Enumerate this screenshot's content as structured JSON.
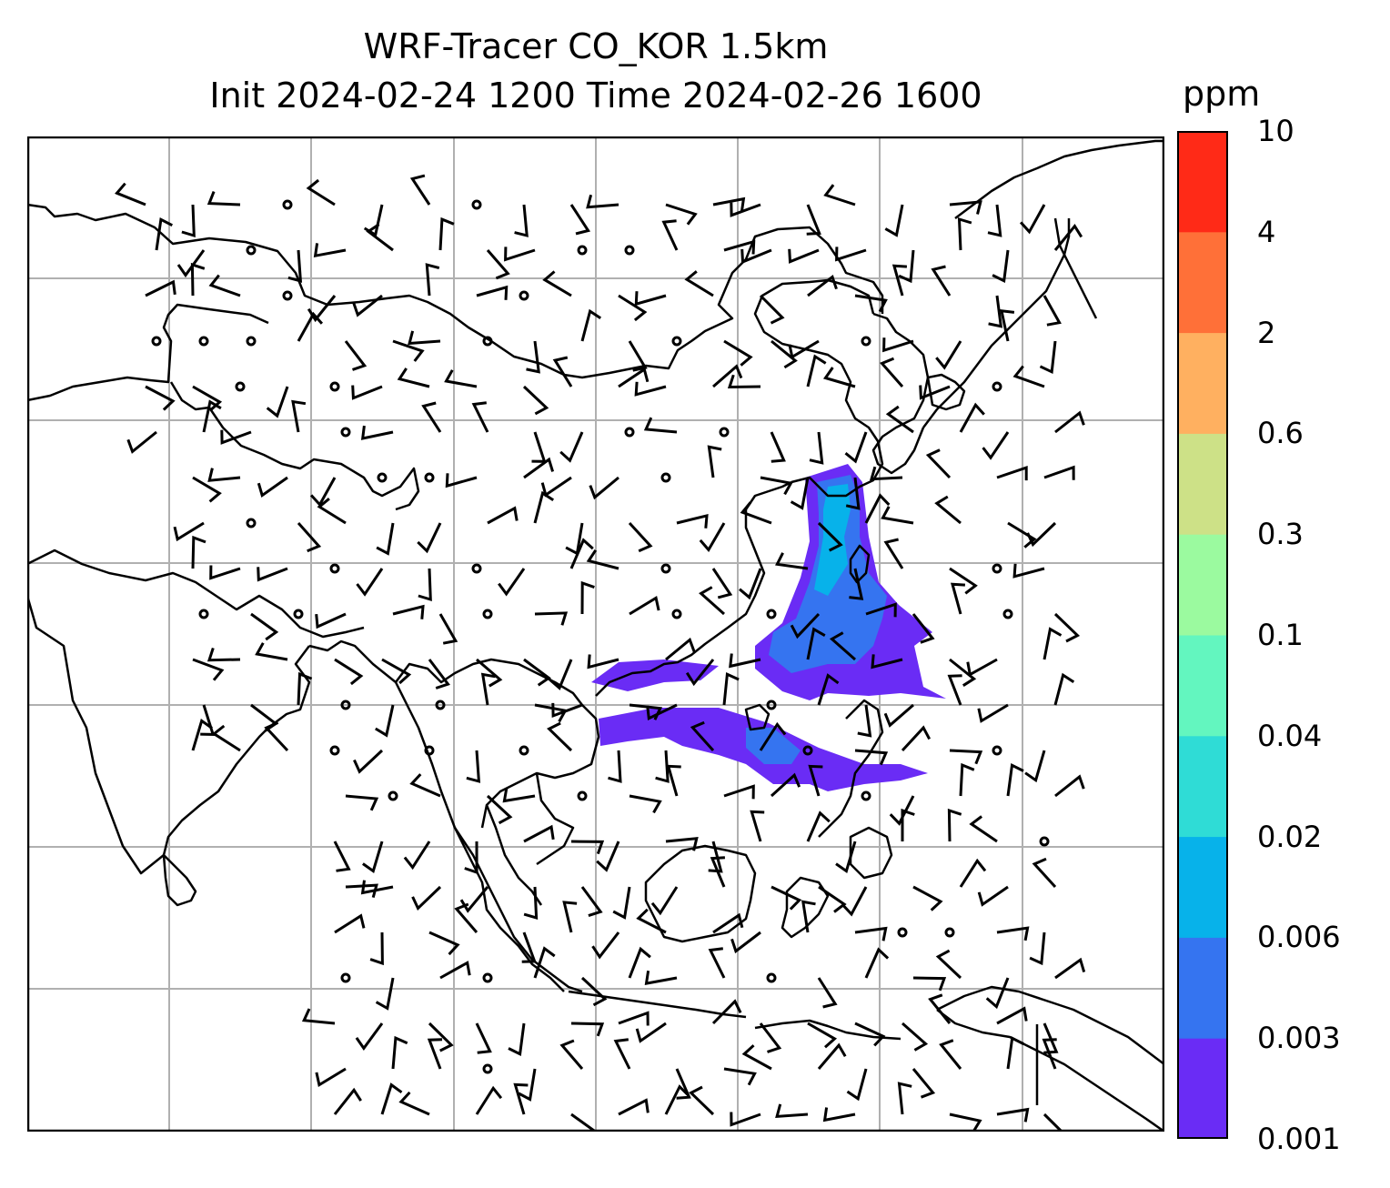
{
  "title": {
    "line1": "WRF-Tracer CO_KOR 1.5km",
    "line2": "Init 2024-02-24 1200 Time 2024-02-26 1600"
  },
  "colorbar": {
    "unit": "ppm",
    "ticks": [
      "0.001",
      "0.003",
      "0.006",
      "0.02",
      "0.04",
      "0.1",
      "0.3",
      "0.6",
      "2",
      "4",
      "10"
    ],
    "colors": [
      "#6a2cf5",
      "#3574f0",
      "#07b2ea",
      "#2fdcd6",
      "#63f6bf",
      "#9bfa9f",
      "#cde187",
      "#ffb060",
      "#ff7038",
      "#ff2a17"
    ]
  },
  "map": {
    "gridlines": true,
    "grid_color": "#b0b0b0",
    "coastline_color": "#000000",
    "wind_symbol": "wind-barbs"
  },
  "plume": {
    "fill_colors": [
      "#6a2cf5",
      "#3574f0",
      "#07b2ea"
    ]
  }
}
